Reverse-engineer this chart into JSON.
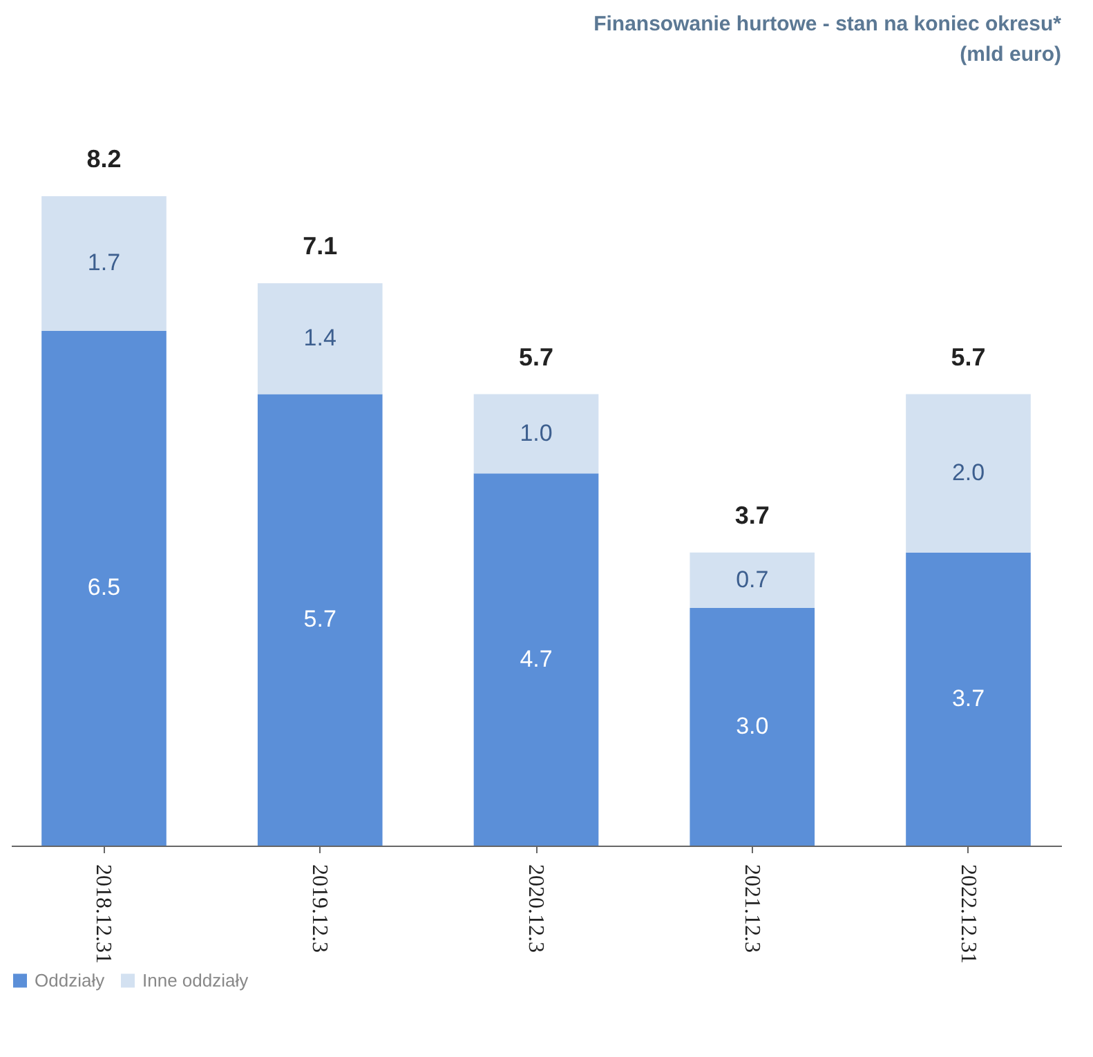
{
  "chart_data": {
    "type": "bar",
    "title": [
      "Finansowanie hurtowe - stan na koniec okresu*",
      "(mld euro)"
    ],
    "categories": [
      "2018.12.31",
      "2019.12.3",
      "2020.12.3",
      "2021.12.3",
      "2022.12.31"
    ],
    "stacked": true,
    "legend": "bottom",
    "series": [
      {
        "name": "Oddziały",
        "color": "#5b8fd8",
        "values": [
          6.5,
          5.7,
          4.7,
          3.0,
          3.7
        ],
        "value_labels": [
          "6.5",
          "5.7",
          "4.7",
          "3.0",
          "3.7"
        ]
      },
      {
        "name": "Inne oddziały",
        "color": "#d3e1f1",
        "values": [
          1.7,
          1.4,
          1.0,
          0.7,
          2.0
        ],
        "value_labels": [
          "1.7",
          "1.4",
          "1.0",
          "0.7",
          "2.0"
        ]
      }
    ],
    "totals": [
      "8.2",
      "7.1",
      "5.7",
      "3.7",
      "5.7"
    ]
  }
}
